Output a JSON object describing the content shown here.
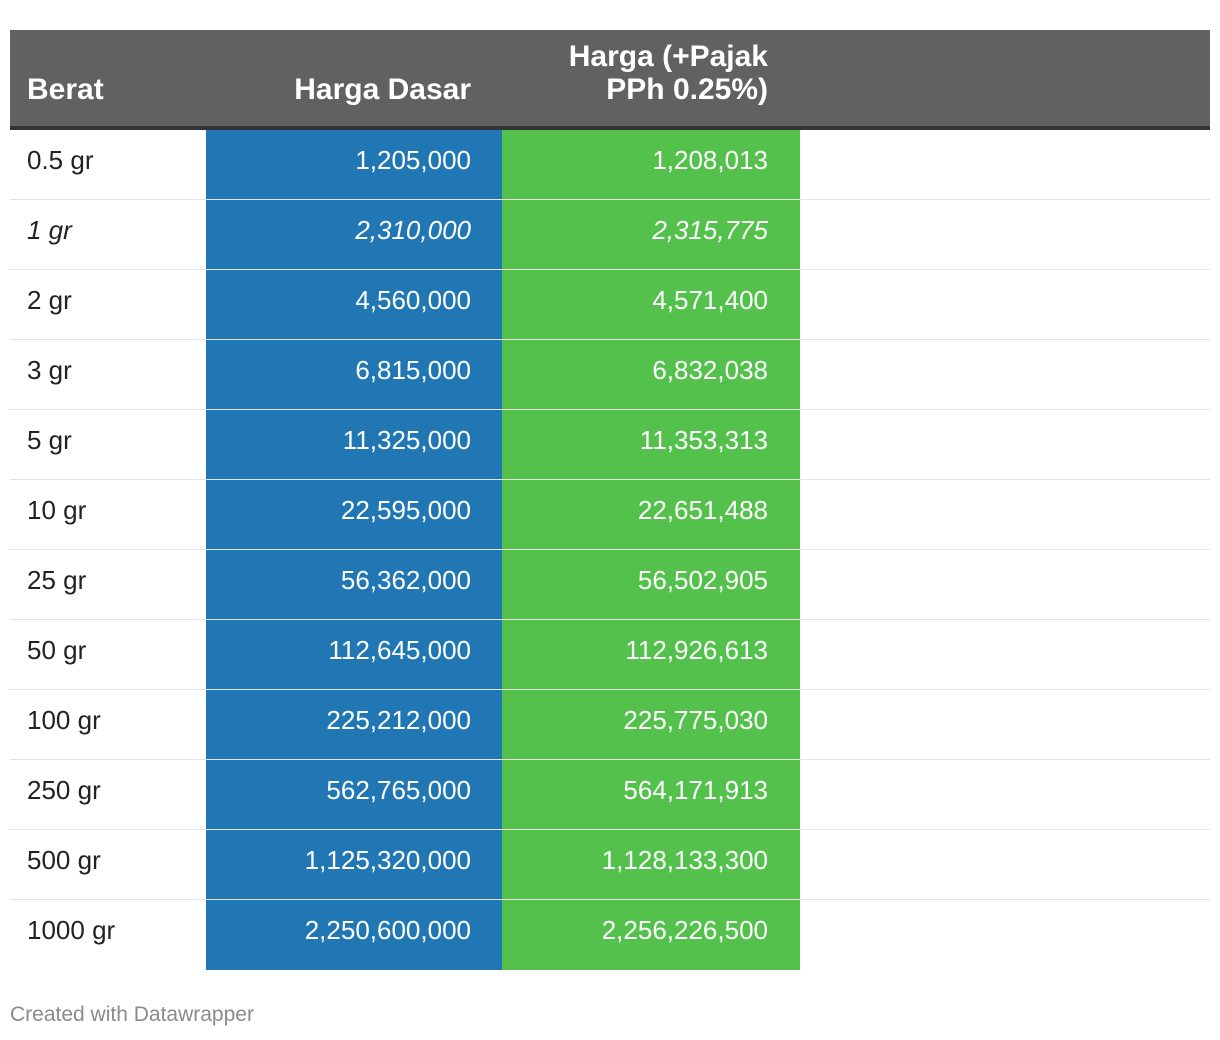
{
  "chart_data": {
    "type": "table",
    "columns": [
      "Berat",
      "Harga Dasar",
      "Harga (+Pajak PPh 0.25%)"
    ],
    "header_lines": {
      "pajak_line1": "Harga (+Pajak",
      "pajak_line2": "PPh 0.25%)"
    },
    "rows": [
      {
        "berat": "0.5 gr",
        "dasar": "1,205,000",
        "pajak": "1,208,013",
        "italic": false
      },
      {
        "berat": "1 gr",
        "dasar": "2,310,000",
        "pajak": "2,315,775",
        "italic": true
      },
      {
        "berat": "2 gr",
        "dasar": "4,560,000",
        "pajak": "4,571,400",
        "italic": false
      },
      {
        "berat": "3 gr",
        "dasar": "6,815,000",
        "pajak": "6,832,038",
        "italic": false
      },
      {
        "berat": "5 gr",
        "dasar": "11,325,000",
        "pajak": "11,353,313",
        "italic": false
      },
      {
        "berat": "10 gr",
        "dasar": "22,595,000",
        "pajak": "22,651,488",
        "italic": false
      },
      {
        "berat": "25 gr",
        "dasar": "56,362,000",
        "pajak": "56,502,905",
        "italic": false
      },
      {
        "berat": "50 gr",
        "dasar": "112,645,000",
        "pajak": "112,926,613",
        "italic": false
      },
      {
        "berat": "100 gr",
        "dasar": "225,212,000",
        "pajak": "225,775,030",
        "italic": false
      },
      {
        "berat": "250 gr",
        "dasar": "562,765,000",
        "pajak": "564,171,913",
        "italic": false
      },
      {
        "berat": "500 gr",
        "dasar": "1,125,320,000",
        "pajak": "1,128,133,300",
        "italic": false
      },
      {
        "berat": "1000 gr",
        "dasar": "2,250,600,000",
        "pajak": "2,256,226,500",
        "italic": false
      }
    ],
    "colors": {
      "header_bg": "#616161",
      "dasar_bg": "#2077b4",
      "pajak_bg": "#53c14c"
    }
  },
  "footer": {
    "credit": "Created with Datawrapper"
  }
}
